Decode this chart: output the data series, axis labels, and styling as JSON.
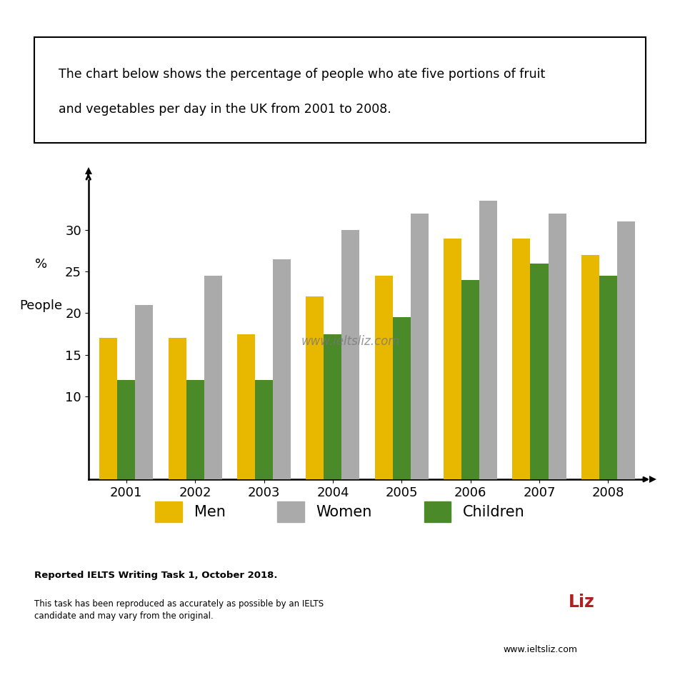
{
  "years": [
    "2001",
    "2002",
    "2003",
    "2004",
    "2005",
    "2006",
    "2007",
    "2008"
  ],
  "men": [
    17,
    17,
    17.5,
    22,
    24.5,
    29,
    29,
    27
  ],
  "women": [
    21,
    24.5,
    26.5,
    30,
    32,
    33.5,
    32,
    31
  ],
  "children": [
    12,
    12,
    12,
    17.5,
    19.5,
    24,
    26,
    24.5
  ],
  "men_color": "#e8b800",
  "women_color": "#aaaaaa",
  "children_color": "#4a8a28",
  "ylabel_top": "%",
  "ylabel_bottom": "People",
  "ylim": [
    0,
    36
  ],
  "yticks": [
    10,
    15,
    20,
    25,
    30
  ],
  "title_box_text_line1": "The chart below shows the percentage of people who ate five portions of fruit",
  "title_box_text_line2": "and vegetables per day in the UK from 2001 to 2008.",
  "watermark": "www.ieltsliz.com",
  "legend_labels": [
    "Men",
    "Women",
    "Children"
  ],
  "footer_bold": "Reported IELTS Writing Task 1, October 2018.",
  "footer_small": "This task has been reproduced as accurately as possible by an IELTS\ncandidate and may vary from the original.",
  "ielts_liz_url": "www.ieltsliz.com",
  "background_color": "#ffffff",
  "logo_bg_color": "#b02020",
  "bar_width": 0.26,
  "bar_gap": 0.0
}
